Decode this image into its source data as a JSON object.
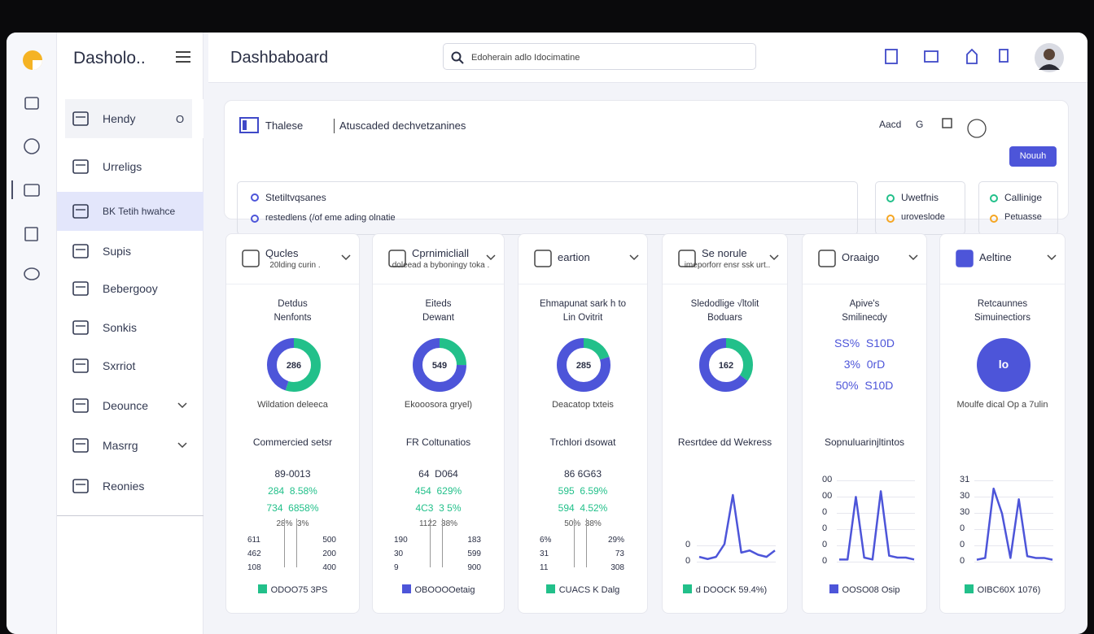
{
  "sidebar": {
    "brand": "Dasholo..",
    "items": [
      {
        "label": "Hendy",
        "badge": "O"
      },
      {
        "label": "Urreligs"
      },
      {
        "label": "BK Tetih hwahce"
      },
      {
        "label": "Supis"
      },
      {
        "label": "Bebergooy"
      },
      {
        "label": "Sonkis"
      },
      {
        "label": "Sxrriot"
      },
      {
        "label": "Deounce"
      },
      {
        "label": "Masrrg"
      },
      {
        "label": "Reonies"
      }
    ]
  },
  "topbar": {
    "title": "Dashbaboard",
    "search_placeholder": "Edoherain adlo Idocimatine"
  },
  "filters": {
    "select1": "Thalese",
    "select2": "Atuscaded dechvetzanines",
    "link1": "Aacd",
    "link2": "G",
    "button": "Nouuh",
    "info": [
      "Stetiltvqsanes",
      "restedlens (/of eme ading olnatie"
    ],
    "status_cards": [
      [
        "Uwetfnis",
        "uroveslode"
      ],
      [
        "Callinige",
        "Petuasse"
      ]
    ]
  },
  "cards": [
    {
      "title": "Qucles",
      "subtitle": "20lding curin .",
      "heading": [
        "Detdus",
        "Nenfonts"
      ],
      "donut": {
        "center": "286",
        "segments": [
          55,
          45
        ]
      },
      "caption": "Wildation deleeca",
      "section": "Commercied setsr",
      "stats": [
        "89-0013",
        "284  8.58%",
        "734  6858%",
        "28%  3%"
      ],
      "axis_left": [
        "611",
        "462",
        "108"
      ],
      "axis_right": [
        "500",
        "200",
        "400"
      ],
      "legend": "ODOO75 3PS"
    },
    {
      "title": "Cprnimicliall",
      "subtitle": "doleead a byboningy toka .",
      "heading": [
        "Eiteds",
        "Dewant"
      ],
      "donut": {
        "center": "549",
        "segments": [
          25,
          75
        ]
      },
      "caption": "Ekooosora gryel)",
      "section": "FR Coltunatios",
      "stats": [
        "64  D064",
        "454  629%",
        "4C3  3 5%",
        "1122  38%"
      ],
      "axis_left": [
        "190",
        "30",
        "9"
      ],
      "axis_right": [
        "183",
        "599",
        "900"
      ],
      "legend": "OBOOOOetaig"
    },
    {
      "title": "eartion",
      "heading": [
        "Ehmapunat sark h to",
        "Lin Ovitrit"
      ],
      "donut": {
        "center": "285",
        "segments": [
          20,
          80
        ]
      },
      "caption": "Deacatop txteis",
      "section": "Trchlori dsowat",
      "stats": [
        "86 6G63",
        "595  6.59%",
        "594  4.52%",
        "50%  38%"
      ],
      "axis_left": [
        "6%",
        "31",
        "11"
      ],
      "axis_right": [
        "29%",
        "73",
        "308"
      ],
      "legend": "CUACS K Dalg"
    },
    {
      "title": "Se norule",
      "subtitle": "imeporforr ensr ssk urt..",
      "heading": [
        "Sledodlige √ltolit",
        "Boduars"
      ],
      "donut": {
        "center": "162",
        "segments": [
          35,
          65
        ]
      },
      "section": "Resrtdee dd Wekress",
      "line": {
        "ticks": [
          "0",
          "0"
        ],
        "values": [
          0.3,
          0.2,
          0.3,
          0.9,
          3.2,
          0.5,
          0.6,
          0.4,
          0.3,
          0.6
        ],
        "ylim": [
          0,
          4
        ]
      },
      "legend": "d DOOCK 59.4%)"
    },
    {
      "title": "Oraaigo",
      "heading": [
        "Apive's",
        "Smilinecdy"
      ],
      "stats": [
        "SS%  S10D",
        "3%  0rD",
        "50%  S10D"
      ],
      "section": "Sopnuluarinjltintos",
      "line": {
        "ticks": [
          "00",
          "00",
          "0",
          "0",
          "0",
          "0"
        ],
        "values": [
          0.2,
          0.2,
          3.5,
          0.3,
          0.2,
          3.8,
          0.4,
          0.3,
          0.3,
          0.2
        ],
        "ylim": [
          0,
          4.5
        ]
      },
      "legend": "OOSO08 Osip"
    },
    {
      "title": "Aeltine",
      "heading": [
        "Retcaunnes",
        "Simuinectiors"
      ],
      "donut": {
        "center": "lo"
      },
      "caption": "Moulfe dical Op a 7ulin",
      "line": {
        "ticks": [
          "31",
          "30",
          "30",
          "0",
          "0",
          "0"
        ],
        "values": [
          0.2,
          0.3,
          4.2,
          2.8,
          0.3,
          3.6,
          0.4,
          0.3,
          0.3,
          0.2
        ],
        "ylim": [
          0,
          4.8
        ]
      },
      "legend": "OIBC60X 1076)"
    }
  ]
}
